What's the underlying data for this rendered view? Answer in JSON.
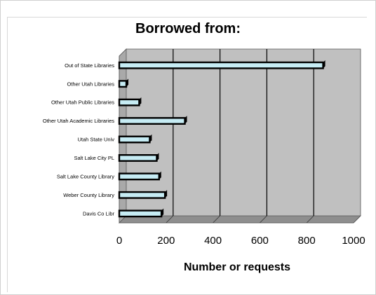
{
  "chart_data": {
    "type": "bar",
    "orientation": "horizontal",
    "title": "Borrowed from:",
    "xlabel": "Number or requests",
    "ylabel": "",
    "categories": [
      "Out of State Libraries",
      "Other Utah Libraries",
      "Other Utah Public Libraries",
      "Other Utah Academic Libraries",
      "Utah State Univ",
      "Salt Lake City PL",
      "Salt Lake County Library",
      "Weber County Library",
      "Davis Co Libr"
    ],
    "values": [
      870,
      30,
      85,
      280,
      130,
      160,
      170,
      195,
      180
    ],
    "xlim": [
      0,
      1000
    ],
    "x_ticks": [
      "0",
      "200",
      "400",
      "600",
      "800",
      "1000"
    ],
    "grid": "vertical",
    "legend": "none",
    "colors": {
      "bar_fill": "#c6ecf4",
      "bar_edge": "#000000",
      "plot_background": "#c0c0c0",
      "gridline": "#000000"
    }
  }
}
